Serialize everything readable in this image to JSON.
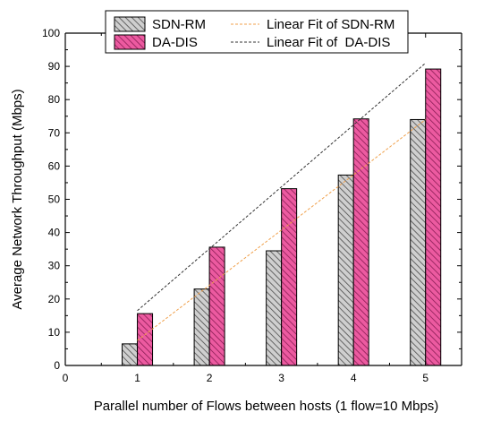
{
  "chart_data": {
    "type": "bar",
    "xlabel": "Parallel number of Flows between hosts (1 flow=10 Mbps)",
    "ylabel": "Average Network Throughput (Mbps)",
    "xlim": [
      0,
      5.5
    ],
    "ylim": [
      0,
      100
    ],
    "x_ticks": [
      "0",
      "1",
      "2",
      "3",
      "4",
      "5"
    ],
    "y_ticks": [
      "0",
      "10",
      "20",
      "30",
      "40",
      "50",
      "60",
      "70",
      "80",
      "90",
      "100"
    ],
    "categories": [
      1,
      2,
      3,
      4,
      5
    ],
    "series": [
      {
        "name": "SDN-RM",
        "values": [
          6.5,
          23,
          34.5,
          57.3,
          74
        ],
        "color": "#c8c8c8"
      },
      {
        "name": "DA-DIS",
        "values": [
          15.6,
          35.6,
          53.2,
          74.2,
          89.2
        ],
        "color": "#e8418e"
      }
    ],
    "fits": [
      {
        "name": "Linear Fit of SDN-RM",
        "x": [
          1,
          5
        ],
        "y": [
          7.5,
          74
        ],
        "color": "#f0a04b"
      },
      {
        "name": "Linear Fit of  DA-DIS",
        "x": [
          1,
          5
        ],
        "y": [
          16.5,
          91
        ],
        "color": "#333333"
      }
    ],
    "legend_position": "top-inside"
  }
}
